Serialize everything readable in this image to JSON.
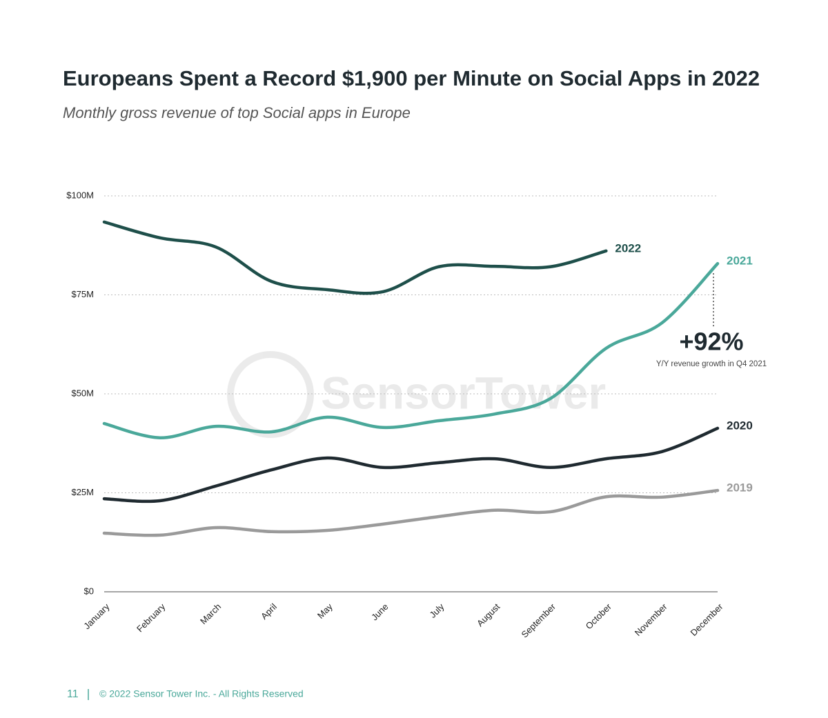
{
  "chart_data": {
    "type": "line",
    "title": "Europeans Spent a Record $1,900 per Minute on Social Apps in 2022",
    "subtitle": "Monthly gross revenue of top Social apps in Europe",
    "categories": [
      "January",
      "February",
      "March",
      "April",
      "May",
      "June",
      "July",
      "August",
      "September",
      "October",
      "November",
      "December"
    ],
    "series": [
      {
        "name": "2022",
        "color": "#1e4f4a",
        "values": [
          93.4,
          89.4,
          87.1,
          78.4,
          76.3,
          75.8,
          82.1,
          82.2,
          82.1,
          86.1,
          null,
          null
        ]
      },
      {
        "name": "2021",
        "color": "#4aa89a",
        "values": [
          42.5,
          38.9,
          41.8,
          40.4,
          44.1,
          41.5,
          43.2,
          44.9,
          48.8,
          61.5,
          67.9,
          82.9
        ]
      },
      {
        "name": "2020",
        "color": "#1f2a30",
        "values": [
          23.5,
          23.0,
          26.7,
          30.8,
          33.8,
          31.4,
          32.6,
          33.6,
          31.4,
          33.6,
          35.4,
          41.3
        ]
      },
      {
        "name": "2019",
        "color": "#9a9a9a",
        "values": [
          14.8,
          14.3,
          16.2,
          15.2,
          15.5,
          17.1,
          19.0,
          20.6,
          20.2,
          24.0,
          23.9,
          25.6
        ]
      }
    ],
    "ylim": [
      0,
      100
    ],
    "yticks": [
      {
        "value": 0,
        "label": "$0"
      },
      {
        "value": 25,
        "label": "$25M"
      },
      {
        "value": 50,
        "label": "$50M"
      },
      {
        "value": 75,
        "label": "$75M"
      },
      {
        "value": 100,
        "label": "$100M"
      }
    ],
    "grid": true,
    "annotation": {
      "value": "+92%",
      "text": "Y/Y revenue growth in Q4 2021"
    },
    "watermark": "SensorTower"
  },
  "footer": {
    "page": "11",
    "copyright": "© 2022 Sensor Tower Inc. - All Rights Reserved"
  }
}
